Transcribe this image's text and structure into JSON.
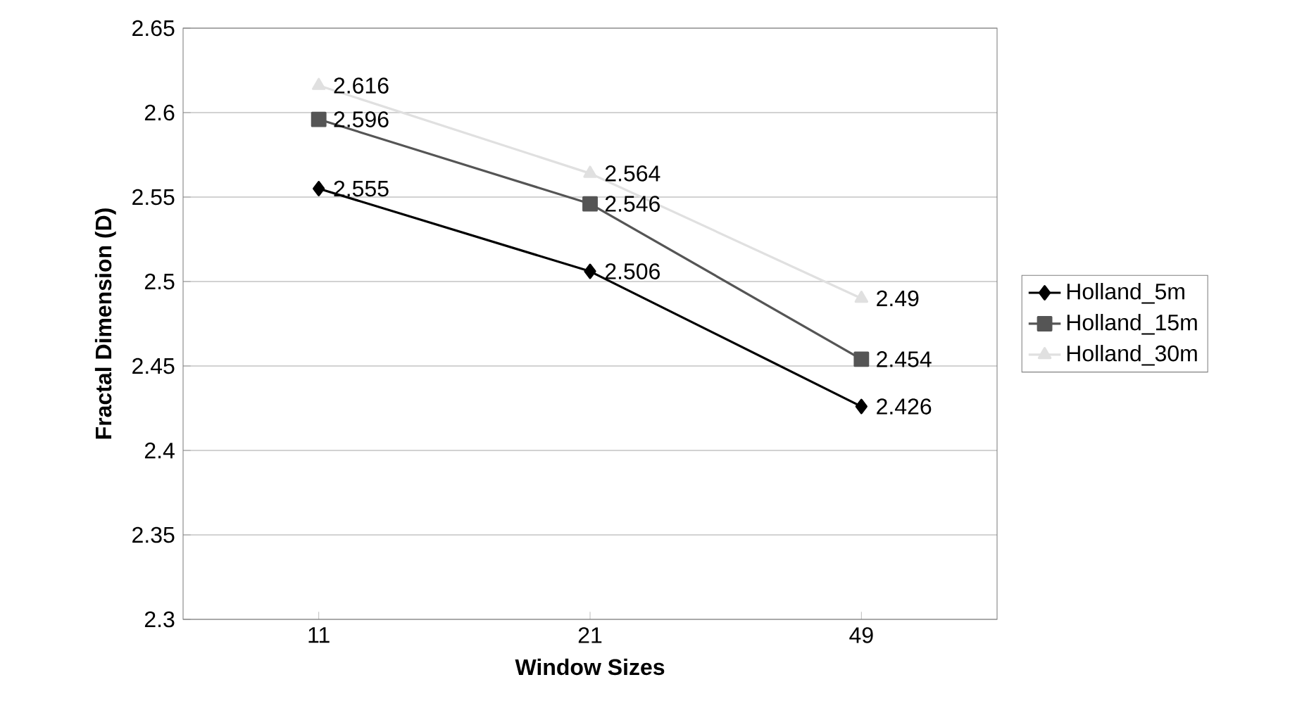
{
  "chart_data": {
    "type": "line",
    "xlabel": "Window Sizes",
    "ylabel": "Fractal Dimension (D)",
    "categories": [
      "11",
      "21",
      "49"
    ],
    "series": [
      {
        "name": "Holland_5m",
        "color": "#000000",
        "marker": "diamond",
        "values": [
          2.555,
          2.506,
          2.426
        ]
      },
      {
        "name": "Holland_15m",
        "color": "#555555",
        "marker": "square",
        "values": [
          2.596,
          2.546,
          2.454
        ]
      },
      {
        "name": "Holland_30m",
        "color": "#e0e0e0",
        "marker": "triangle",
        "values": [
          2.616,
          2.564,
          2.49
        ]
      }
    ],
    "ylim": [
      2.3,
      2.65
    ],
    "yticks": [
      2.3,
      2.35,
      2.4,
      2.45,
      2.5,
      2.55,
      2.6,
      2.65
    ],
    "grid": "y",
    "legend": "right",
    "data_labels": true
  }
}
